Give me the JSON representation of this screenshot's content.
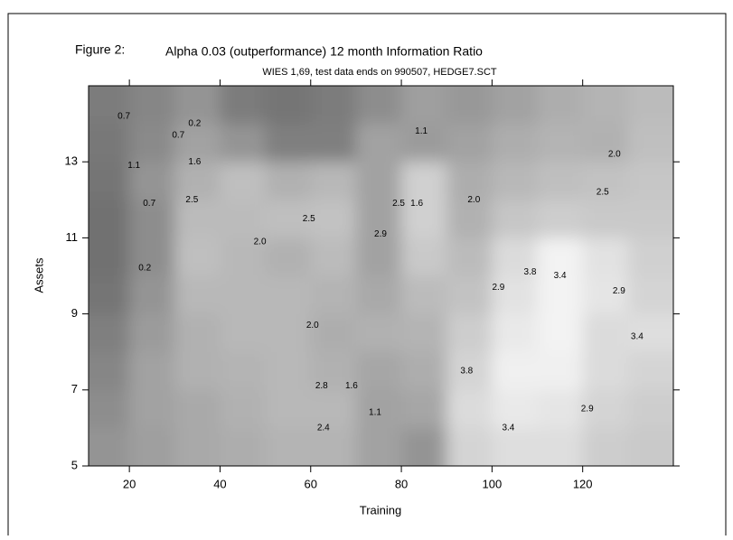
{
  "chart_data": {
    "type": "contour",
    "figure_label": "Figure 2:",
    "title": "Alpha 0.03 (outperformance) 12 month Information Ratio",
    "subtitle": "WIES 1,69, test data ends on 990507, HEDGE7.SCT",
    "xlabel": "Training",
    "ylabel": "Assets",
    "xlim": [
      11,
      140
    ],
    "ylim": [
      5,
      15
    ],
    "xticks": [
      20,
      40,
      60,
      80,
      100,
      120
    ],
    "yticks": [
      5,
      7,
      9,
      11,
      13
    ],
    "colormap": [
      "#6a6a6a",
      "#f7f7f7"
    ],
    "zlim": [
      0,
      4
    ],
    "x": [
      15,
      25,
      35,
      45,
      55,
      65,
      75,
      85,
      95,
      105,
      115,
      125,
      135
    ],
    "y": [
      14.5,
      13.5,
      12.5,
      11.5,
      10.5,
      9.5,
      8.5,
      7.5,
      6.5,
      5.5
    ],
    "z": [
      [
        0.5,
        0.8,
        1.2,
        0.5,
        0.3,
        0.5,
        1.0,
        1.5,
        1.3,
        1.6,
        1.9,
        2.1,
        2.3
      ],
      [
        0.4,
        0.9,
        1.6,
        1.2,
        0.6,
        0.6,
        1.6,
        1.4,
        1.6,
        1.9,
        2.1,
        2.0,
        2.4
      ],
      [
        0.3,
        1.2,
        2.0,
        2.4,
        2.0,
        2.2,
        1.6,
        2.9,
        1.9,
        2.2,
        2.4,
        2.5,
        2.6
      ],
      [
        0.2,
        1.0,
        2.3,
        2.3,
        2.4,
        2.5,
        1.6,
        2.9,
        2.0,
        2.6,
        2.8,
        2.7,
        2.7
      ],
      [
        0.2,
        1.0,
        2.4,
        2.2,
        2.0,
        2.3,
        1.6,
        2.7,
        2.3,
        3.2,
        3.9,
        3.4,
        2.9
      ],
      [
        0.3,
        1.2,
        2.2,
        2.2,
        2.2,
        2.1,
        1.8,
        2.3,
        2.5,
        3.4,
        3.9,
        3.5,
        3.0
      ],
      [
        0.6,
        1.4,
        2.0,
        2.2,
        2.2,
        1.9,
        2.0,
        2.1,
        2.8,
        3.6,
        3.9,
        3.2,
        3.3
      ],
      [
        0.8,
        1.6,
        2.0,
        2.1,
        2.2,
        2.0,
        1.7,
        1.9,
        3.0,
        3.8,
        3.8,
        3.2,
        3.0
      ],
      [
        1.0,
        1.6,
        1.8,
        2.0,
        2.2,
        2.2,
        1.6,
        1.7,
        3.2,
        3.6,
        3.5,
        3.0,
        2.8
      ],
      [
        1.2,
        1.5,
        1.8,
        1.9,
        2.1,
        2.1,
        1.6,
        1.2,
        3.0,
        3.3,
        3.3,
        2.8,
        2.7
      ]
    ],
    "contour_labels": [
      {
        "label": "0.2",
        "x": 34.4,
        "y": 14.0
      },
      {
        "label": "0.7",
        "x": 18.8,
        "y": 14.2
      },
      {
        "label": "0.7",
        "x": 30.8,
        "y": 13.7
      },
      {
        "label": "1.1",
        "x": 21,
        "y": 12.9
      },
      {
        "label": "1.6",
        "x": 34.4,
        "y": 13.0
      },
      {
        "label": "2.5",
        "x": 33.8,
        "y": 12.0
      },
      {
        "label": "0.7",
        "x": 24.4,
        "y": 11.9
      },
      {
        "label": "0.2",
        "x": 23.4,
        "y": 10.2
      },
      {
        "label": "2.5",
        "x": 59.6,
        "y": 11.5
      },
      {
        "label": "2.0",
        "x": 48.8,
        "y": 10.9
      },
      {
        "label": "1.1",
        "x": 84.4,
        "y": 13.8
      },
      {
        "label": "2.9",
        "x": 75.4,
        "y": 11.1
      },
      {
        "label": "2.5",
        "x": 79.4,
        "y": 11.9
      },
      {
        "label": "1.6",
        "x": 83.4,
        "y": 11.9
      },
      {
        "label": "2.0",
        "x": 96,
        "y": 12.0
      },
      {
        "label": "2.0",
        "x": 127,
        "y": 13.2
      },
      {
        "label": "2.5",
        "x": 124.4,
        "y": 12.2
      },
      {
        "label": "3.8",
        "x": 108.4,
        "y": 10.1
      },
      {
        "label": "3.4",
        "x": 115,
        "y": 10.0
      },
      {
        "label": "2.9",
        "x": 128,
        "y": 9.6
      },
      {
        "label": "2.9",
        "x": 101.4,
        "y": 9.7
      },
      {
        "label": "3.4",
        "x": 132,
        "y": 8.4
      },
      {
        "label": "2.0",
        "x": 60.4,
        "y": 8.7
      },
      {
        "label": "3.8",
        "x": 94.4,
        "y": 7.5
      },
      {
        "label": "2.8",
        "x": 62.4,
        "y": 7.1
      },
      {
        "label": "1.6",
        "x": 69,
        "y": 7.1
      },
      {
        "label": "1.1",
        "x": 74.2,
        "y": 6.4
      },
      {
        "label": "2.9",
        "x": 121,
        "y": 6.5
      },
      {
        "label": "3.4",
        "x": 103.6,
        "y": 6.0
      },
      {
        "label": "2.4",
        "x": 62.8,
        "y": 6.0
      }
    ]
  }
}
